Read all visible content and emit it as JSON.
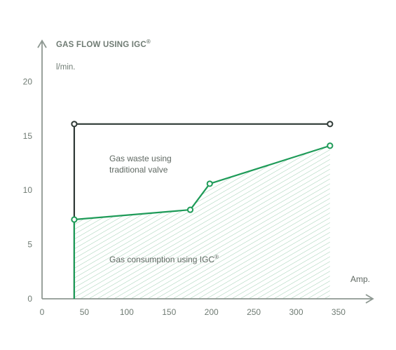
{
  "chart_data": {
    "type": "line",
    "title": "GAS FLOW USING IGC",
    "title_superscript": "®",
    "ylabel": "l/min.",
    "xlabel": "Amp.",
    "x_axis": {
      "ticks": [
        0,
        50,
        100,
        150,
        200,
        250,
        300,
        350
      ],
      "range": [
        0,
        360
      ]
    },
    "y_axis": {
      "ticks": [
        0,
        5,
        10,
        15,
        20
      ],
      "range": [
        0,
        23
      ]
    },
    "series": [
      {
        "color": "#2f3a36",
        "points": [
          {
            "x": 38,
            "y": 0
          },
          {
            "x": 38,
            "y": 16.1
          },
          {
            "x": 340,
            "y": 16.1
          }
        ],
        "markers": [
          {
            "x": 38,
            "y": 16.1
          },
          {
            "x": 340,
            "y": 16.1
          }
        ]
      },
      {
        "color": "#1e9b58",
        "points": [
          {
            "x": 38,
            "y": 0
          },
          {
            "x": 38,
            "y": 7.3
          },
          {
            "x": 175,
            "y": 8.2
          },
          {
            "x": 198,
            "y": 10.6
          },
          {
            "x": 340,
            "y": 14.1
          }
        ],
        "markers": [
          {
            "x": 38,
            "y": 7.3
          },
          {
            "x": 175,
            "y": 8.2
          },
          {
            "x": 198,
            "y": 10.6
          },
          {
            "x": 340,
            "y": 14.1
          }
        ]
      }
    ],
    "annotations": {
      "waste": {
        "line1": "Gas waste using",
        "line2": "traditional valve"
      },
      "consumption": {
        "text": "Gas consumption using IGC",
        "superscript": "®"
      }
    },
    "hatch_color": "#9fcfb2",
    "axis_color": "#8e9892"
  }
}
